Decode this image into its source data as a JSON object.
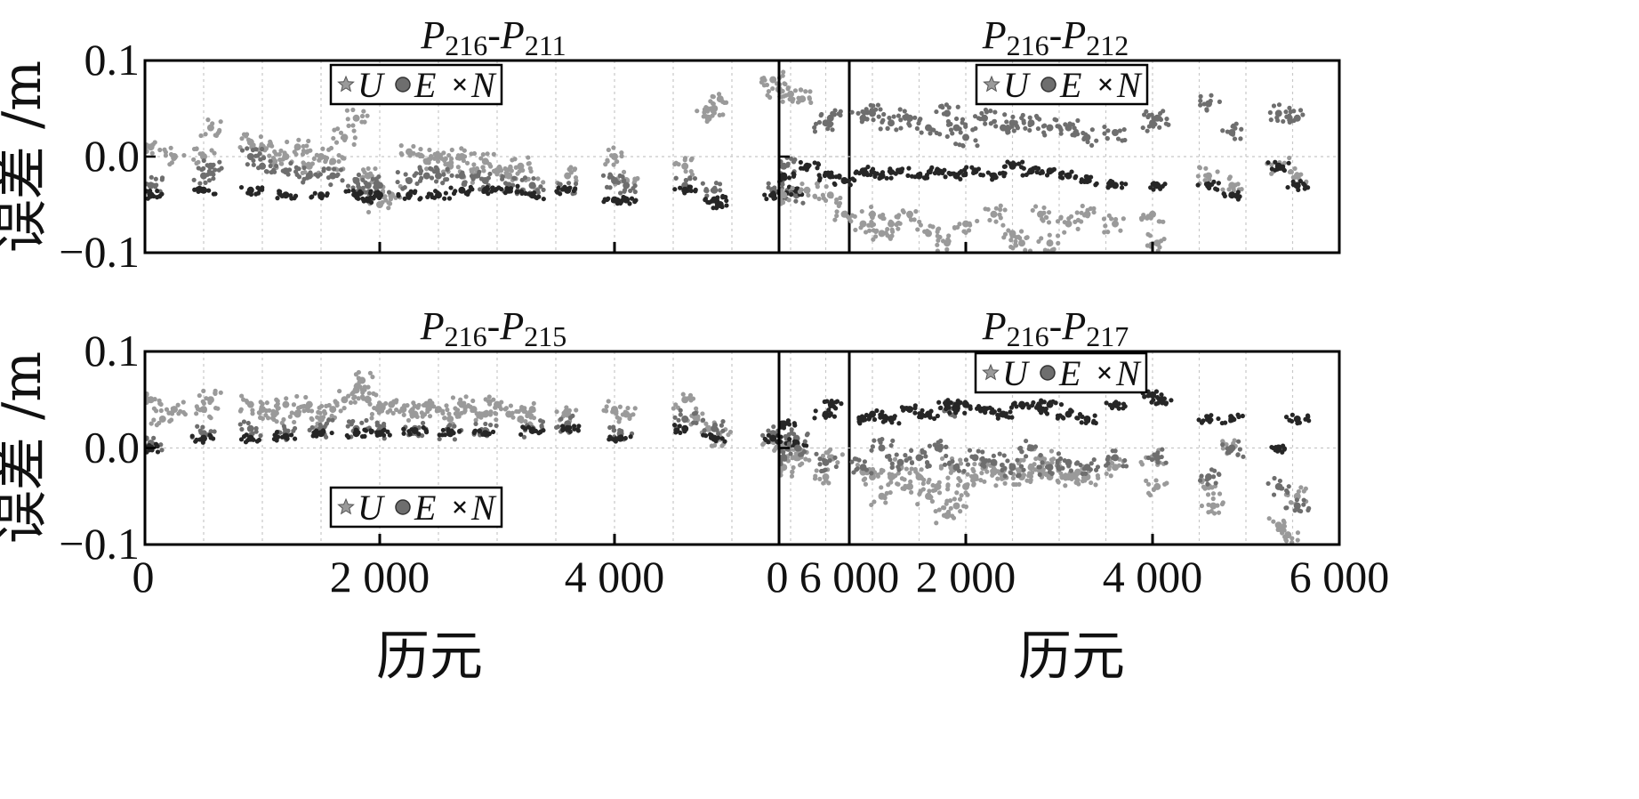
{
  "chart_data": {
    "type": "scatter",
    "shared": {
      "xlabel": "历元",
      "ylabel": "误差 /m",
      "xlim": [
        0,
        6000
      ],
      "ylim": [
        -0.1,
        0.1
      ],
      "xticks": [
        0,
        2000,
        4000,
        6000
      ],
      "xtick_labels": [
        "0",
        "2 000",
        "4 000",
        "6 000"
      ],
      "yticks": [
        -0.1,
        0.0,
        0.1
      ],
      "ytick_labels": [
        "−0.1",
        "0.0",
        "0.1"
      ],
      "grid": true,
      "series_colors": {
        "U": "#9a9a9a",
        "E": "#6e6e6e",
        "N": "#262626"
      },
      "legend_items": [
        {
          "name": "U",
          "marker": "star"
        },
        {
          "name": "E",
          "marker": "circle"
        },
        {
          "name": "N",
          "marker": "cross"
        }
      ]
    },
    "panels": [
      {
        "id": "p1",
        "title": {
          "base": "P",
          "sub1": "216",
          "sep": "-",
          "sub2": "211"
        },
        "legend_position": "top-center",
        "series": [
          {
            "name": "U",
            "x": [
              50,
              250,
              500,
              560,
              900,
              1000,
              1100,
              1200,
              1300,
              1400,
              1500,
              1600,
              1700,
              1800,
              1900,
              2000,
              2100,
              2250,
              2400,
              2500,
              2600,
              2700,
              2800,
              2900,
              3000,
              3100,
              3200,
              3300,
              3600,
              4000,
              4100,
              4600,
              4800,
              4850,
              4900,
              5350,
              5400,
              5500,
              5600
            ],
            "y": [
              0.01,
              0.0,
              0.0,
              0.03,
              0.015,
              0.01,
              -0.005,
              0.0,
              0.01,
              -0.01,
              0.0,
              -0.005,
              0.02,
              0.04,
              -0.02,
              -0.05,
              -0.04,
              0.005,
              -0.005,
              0.0,
              -0.01,
              0.0,
              -0.02,
              -0.005,
              -0.015,
              -0.02,
              -0.01,
              -0.03,
              -0.02,
              0.0,
              -0.025,
              -0.01,
              0.04,
              0.05,
              0.06,
              0.08,
              0.07,
              0.065,
              0.06
            ]
          },
          {
            "name": "E",
            "x": [
              50,
              500,
              560,
              900,
              1000,
              1200,
              1400,
              1600,
              1800,
              1900,
              2000,
              2250,
              2400,
              2500,
              2700,
              2900,
              3100,
              3300,
              3600,
              4000,
              4100,
              4600,
              4850,
              5350,
              5550
            ],
            "y": [
              -0.03,
              -0.02,
              -0.01,
              0.0,
              -0.01,
              -0.015,
              -0.02,
              -0.02,
              -0.025,
              -0.03,
              -0.03,
              -0.025,
              -0.02,
              -0.02,
              -0.02,
              -0.025,
              -0.03,
              -0.03,
              -0.035,
              -0.025,
              -0.03,
              -0.03,
              -0.035,
              -0.035,
              -0.04
            ]
          },
          {
            "name": "N",
            "x": [
              50,
              500,
              900,
              1200,
              1500,
              1800,
              1900,
              2000,
              2250,
              2500,
              2700,
              2900,
              3100,
              3300,
              3600,
              4000,
              4100,
              4600,
              4850,
              4900,
              5350,
              5550
            ],
            "y": [
              -0.04,
              -0.035,
              -0.035,
              -0.04,
              -0.04,
              -0.04,
              -0.045,
              -0.04,
              -0.04,
              -0.04,
              -0.035,
              -0.035,
              -0.035,
              -0.04,
              -0.035,
              -0.045,
              -0.045,
              -0.035,
              -0.045,
              -0.05,
              -0.04,
              -0.035
            ]
          }
        ]
      },
      {
        "id": "p2",
        "title": {
          "base": "P",
          "sub1": "216",
          "sep": "-",
          "sub2": "212"
        },
        "legend_position": "top-center",
        "series": [
          {
            "name": "U",
            "x": [
              50,
              300,
              550,
              700,
              900,
              1000,
              1100,
              1200,
              1400,
              1600,
              1800,
              2000,
              2300,
              2500,
              2600,
              2800,
              2900,
              3100,
              3300,
              3600,
              4000,
              4050,
              4600,
              4850,
              5350,
              5550
            ],
            "y": [
              -0.04,
              -0.035,
              -0.04,
              -0.06,
              -0.07,
              -0.06,
              -0.08,
              -0.07,
              -0.06,
              -0.08,
              -0.09,
              -0.07,
              -0.06,
              -0.08,
              -0.09,
              -0.06,
              -0.09,
              -0.07,
              -0.06,
              -0.07,
              -0.06,
              -0.09,
              -0.02,
              -0.03,
              -0.01,
              -0.02
            ]
          },
          {
            "name": "E",
            "x": [
              50,
              500,
              550,
              900,
              1000,
              1200,
              1400,
              1600,
              1800,
              1900,
              2000,
              2200,
              2400,
              2500,
              2700,
              2900,
              3100,
              3300,
              3600,
              4000,
              4050,
              4600,
              4850,
              5350,
              5550
            ],
            "y": [
              -0.01,
              0.035,
              0.04,
              0.04,
              0.045,
              0.035,
              0.04,
              0.03,
              0.045,
              0.03,
              0.02,
              0.04,
              0.03,
              0.035,
              0.035,
              0.03,
              0.03,
              0.02,
              0.025,
              0.035,
              0.04,
              0.055,
              0.025,
              0.045,
              0.04
            ]
          },
          {
            "name": "N",
            "x": [
              50,
              300,
              550,
              700,
              900,
              1100,
              1300,
              1500,
              1700,
              1900,
              2100,
              2300,
              2500,
              2700,
              2900,
              3100,
              3300,
              3600,
              4050,
              4600,
              4850,
              5350,
              5550
            ],
            "y": [
              -0.02,
              -0.01,
              -0.02,
              -0.025,
              -0.015,
              -0.02,
              -0.015,
              -0.02,
              -0.015,
              -0.02,
              -0.015,
              -0.02,
              -0.01,
              -0.015,
              -0.015,
              -0.02,
              -0.025,
              -0.03,
              -0.03,
              -0.03,
              -0.04,
              -0.01,
              -0.03
            ]
          }
        ]
      },
      {
        "id": "p3",
        "title": {
          "base": "P",
          "sub1": "216",
          "sep": "-",
          "sub2": "215"
        },
        "legend_position": "bottom-center",
        "series": [
          {
            "name": "U",
            "x": [
              50,
              150,
              250,
              500,
              560,
              900,
              1000,
              1100,
              1200,
              1300,
              1400,
              1500,
              1600,
              1700,
              1800,
              1850,
              1900,
              2000,
              2100,
              2200,
              2300,
              2400,
              2500,
              2600,
              2700,
              2800,
              2900,
              3000,
              3100,
              3200,
              3300,
              3600,
              4000,
              4100,
              4600,
              4700,
              4800,
              4900,
              5350,
              5450,
              5550
            ],
            "y": [
              0.05,
              0.03,
              0.04,
              0.04,
              0.05,
              0.045,
              0.04,
              0.035,
              0.045,
              0.035,
              0.045,
              0.03,
              0.04,
              0.05,
              0.06,
              0.07,
              0.05,
              0.04,
              0.045,
              0.04,
              0.035,
              0.045,
              0.04,
              0.03,
              0.045,
              0.04,
              0.035,
              0.045,
              0.035,
              0.03,
              0.04,
              0.035,
              0.04,
              0.035,
              0.05,
              0.03,
              0.02,
              0.01,
              0.01,
              0.0,
              -0.01
            ]
          },
          {
            "name": "E",
            "x": [
              50,
              500,
              900,
              1200,
              1500,
              1800,
              2000,
              2300,
              2600,
              2900,
              3300,
              3600,
              4050,
              4600,
              4850,
              5350,
              5550
            ],
            "y": [
              0.005,
              0.015,
              0.02,
              0.015,
              0.02,
              0.02,
              0.018,
              0.02,
              0.015,
              0.018,
              0.02,
              0.025,
              0.015,
              0.03,
              0.02,
              0.015,
              0.01
            ]
          },
          {
            "name": "N",
            "x": [
              50,
              500,
              900,
              1200,
              1500,
              1800,
              2000,
              2300,
              2600,
              2900,
              3300,
              3600,
              4050,
              4600,
              4850,
              5350,
              5550
            ],
            "y": [
              0.0,
              0.01,
              0.01,
              0.012,
              0.015,
              0.015,
              0.015,
              0.018,
              0.015,
              0.015,
              0.018,
              0.02,
              0.01,
              0.02,
              0.01,
              0.01,
              0.005
            ]
          }
        ]
      },
      {
        "id": "p4",
        "title": {
          "base": "P",
          "sub1": "216",
          "sep": "-",
          "sub2": "217"
        },
        "legend_position": "top-center",
        "series": [
          {
            "name": "U",
            "x": [
              50,
              200,
              500,
              560,
              900,
              1000,
              1100,
              1200,
              1300,
              1400,
              1500,
              1600,
              1700,
              1800,
              1850,
              1900,
              2000,
              2100,
              2200,
              2300,
              2400,
              2500,
              2600,
              2700,
              2800,
              2900,
              3000,
              3100,
              3200,
              3300,
              3600,
              4000,
              4050,
              4600,
              4650,
              4850,
              5350,
              5450,
              5550
            ],
            "y": [
              -0.02,
              -0.01,
              -0.03,
              -0.01,
              -0.025,
              -0.03,
              -0.05,
              -0.03,
              -0.02,
              -0.04,
              -0.03,
              -0.05,
              -0.04,
              -0.07,
              -0.02,
              -0.06,
              -0.04,
              -0.03,
              -0.02,
              -0.025,
              -0.03,
              -0.02,
              -0.03,
              -0.02,
              -0.01,
              -0.03,
              -0.02,
              -0.03,
              -0.025,
              -0.03,
              -0.02,
              -0.01,
              -0.04,
              -0.04,
              -0.06,
              0.0,
              -0.08,
              -0.09,
              -0.05
            ]
          },
          {
            "name": "E",
            "x": [
              50,
              200,
              500,
              900,
              1100,
              1300,
              1500,
              1700,
              1800,
              1900,
              2100,
              2300,
              2500,
              2700,
              2900,
              3100,
              3300,
              3600,
              4050,
              4600,
              4850,
              5350,
              5550
            ],
            "y": [
              -0.01,
              0.0,
              -0.015,
              -0.02,
              0.0,
              -0.015,
              -0.01,
              0.0,
              0.04,
              -0.02,
              -0.01,
              -0.015,
              -0.02,
              0.0,
              -0.02,
              -0.015,
              -0.02,
              -0.01,
              -0.01,
              -0.03,
              0.0,
              -0.04,
              -0.06
            ]
          },
          {
            "name": "N",
            "x": [
              50,
              500,
              560,
              900,
              1000,
              1200,
              1400,
              1600,
              1800,
              1900,
              2000,
              2200,
              2400,
              2600,
              2800,
              2900,
              3100,
              3300,
              3600,
              4000,
              4100,
              4600,
              4850,
              5350,
              5550
            ],
            "y": [
              0.025,
              0.035,
              0.045,
              0.03,
              0.035,
              0.03,
              0.04,
              0.035,
              0.045,
              0.04,
              0.045,
              0.04,
              0.035,
              0.045,
              0.04,
              0.045,
              0.035,
              0.03,
              0.045,
              0.055,
              0.05,
              0.03,
              0.03,
              0.0,
              0.03
            ]
          }
        ]
      }
    ]
  }
}
